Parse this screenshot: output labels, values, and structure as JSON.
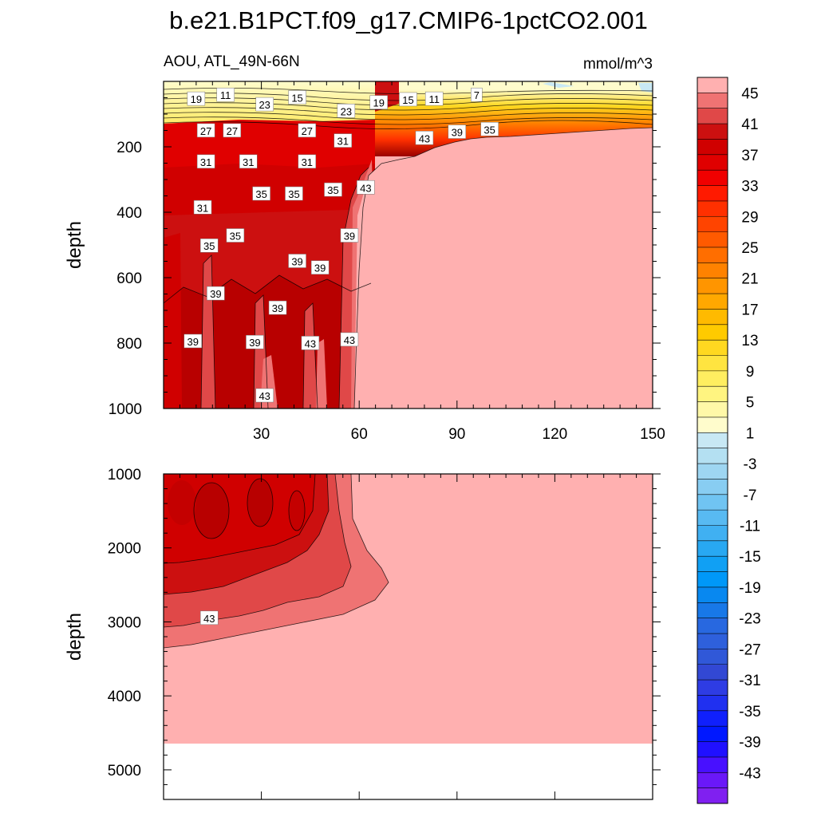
{
  "chart_data": {
    "type": "heatmap",
    "title": "b.e21.B1PCT.f09_g17.CMIP6-1pctCO2.001",
    "subtitle_left": "AOU, ATL_49N-66N",
    "subtitle_right": "mmol/m^3",
    "panels": [
      {
        "name": "upper",
        "ylabel": "depth",
        "xlim": [
          0,
          150
        ],
        "ylim": [
          1000,
          0
        ],
        "xticks": [
          "30",
          "60",
          "90",
          "120",
          "150"
        ],
        "yticks": [
          "200",
          "400",
          "600",
          "800",
          "1000"
        ],
        "contour_labels": [
          {
            "text": "19",
            "x": 10,
            "y": 54
          },
          {
            "text": "11",
            "x": 19,
            "y": 42
          },
          {
            "text": "23",
            "x": 31,
            "y": 71
          },
          {
            "text": "15",
            "x": 41,
            "y": 50
          },
          {
            "text": "23",
            "x": 56,
            "y": 91
          },
          {
            "text": "19",
            "x": 66,
            "y": 65
          },
          {
            "text": "15",
            "x": 75,
            "y": 56
          },
          {
            "text": "11",
            "x": 83,
            "y": 54
          },
          {
            "text": "7",
            "x": 96,
            "y": 42
          },
          {
            "text": "27",
            "x": 13,
            "y": 151
          },
          {
            "text": "27",
            "x": 21,
            "y": 151
          },
          {
            "text": "27",
            "x": 44,
            "y": 151
          },
          {
            "text": "31",
            "x": 55,
            "y": 182
          },
          {
            "text": "43",
            "x": 80,
            "y": 174
          },
          {
            "text": "39",
            "x": 90,
            "y": 155
          },
          {
            "text": "35",
            "x": 100,
            "y": 147
          },
          {
            "text": "31",
            "x": 13,
            "y": 246
          },
          {
            "text": "31",
            "x": 26,
            "y": 246
          },
          {
            "text": "31",
            "x": 44,
            "y": 246
          },
          {
            "text": "35",
            "x": 30,
            "y": 344
          },
          {
            "text": "35",
            "x": 40,
            "y": 344
          },
          {
            "text": "35",
            "x": 52,
            "y": 332
          },
          {
            "text": "43",
            "x": 62,
            "y": 325
          },
          {
            "text": "31",
            "x": 12,
            "y": 386
          },
          {
            "text": "35",
            "x": 22,
            "y": 472
          },
          {
            "text": "35",
            "x": 14,
            "y": 503
          },
          {
            "text": "39",
            "x": 57,
            "y": 472
          },
          {
            "text": "39",
            "x": 41,
            "y": 550
          },
          {
            "text": "39",
            "x": 48,
            "y": 570
          },
          {
            "text": "39",
            "x": 16,
            "y": 649
          },
          {
            "text": "39",
            "x": 35,
            "y": 693
          },
          {
            "text": "39",
            "x": 9,
            "y": 795
          },
          {
            "text": "39",
            "x": 28,
            "y": 798
          },
          {
            "text": "43",
            "x": 45,
            "y": 801
          },
          {
            "text": "43",
            "x": 57,
            "y": 790
          },
          {
            "text": "43",
            "x": 31,
            "y": 961
          }
        ]
      },
      {
        "name": "lower",
        "ylabel": "depth",
        "xlim": [
          0,
          150
        ],
        "ylim": [
          5400,
          1000
        ],
        "yticks": [
          "1000",
          "2000",
          "3000",
          "4000",
          "5000"
        ],
        "seafloor_depth": 4600,
        "contour_labels": [
          {
            "text": "43",
            "x": 14,
            "y": 2950
          }
        ]
      }
    ],
    "colorbar": {
      "labels": [
        "45",
        "41",
        "37",
        "33",
        "29",
        "25",
        "21",
        "17",
        "13",
        "9",
        "5",
        "1",
        "-3",
        "-7",
        "-11",
        "-15",
        "-19",
        "-23",
        "-27",
        "-31",
        "-35",
        "-39",
        "-43"
      ],
      "colors": [
        "#FFB0B0",
        "#EF7373",
        "#E04848",
        "#CC1010",
        "#D00000",
        "#E00000",
        "#F00000",
        "#FF1A00",
        "#FF3000",
        "#FF4400",
        "#FF5A00",
        "#FF6E00",
        "#FF8200",
        "#FF9500",
        "#FFA800",
        "#FFBA00",
        "#FFCA00",
        "#FFD820",
        "#FFE440",
        "#FFEE60",
        "#FFF480",
        "#FFF8A8",
        "#FFFCCC",
        "#C8E8F4",
        "#B4E0F2",
        "#9ED6F2",
        "#88CDF2",
        "#70C4F2",
        "#58BAF2",
        "#40B0F2",
        "#28A8F2",
        "#10A0F4",
        "#0098F8",
        "#0888F0",
        "#1878E8",
        "#2868E0",
        "#2E60DC",
        "#3058D8",
        "#3248D4",
        "#2E3CE4",
        "#2030F0",
        "#1020FC",
        "#0018FF",
        "#2010FF",
        "#4810FF",
        "#6A18F8",
        "#8020F0"
      ]
    }
  }
}
